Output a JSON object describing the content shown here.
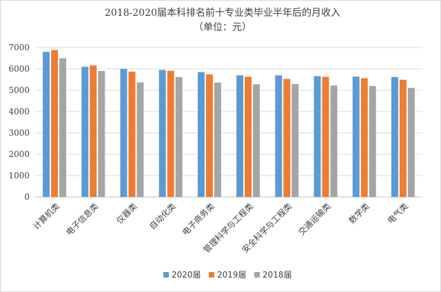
{
  "chart_data": {
    "type": "bar",
    "title": "2018-2020届本科排名前十专业类毕业半年后的月收入",
    "subtitle": "（单位：元）",
    "categories": [
      "计算机类",
      "电子信息类",
      "仪器类",
      "自动化类",
      "电子商务类",
      "管理科学与工程类",
      "安全科学与工程类",
      "交通运输类",
      "数学类",
      "电气类"
    ],
    "series": [
      {
        "name": "2020届",
        "color": "#5b9bd5",
        "values": [
          6800,
          6100,
          6000,
          5950,
          5850,
          5700,
          5700,
          5660,
          5640,
          5620
        ]
      },
      {
        "name": "2019届",
        "color": "#ed7d31",
        "values": [
          6880,
          6160,
          5870,
          5910,
          5740,
          5630,
          5530,
          5630,
          5560,
          5490
        ]
      },
      {
        "name": "2018届",
        "color": "#a5a5a5",
        "values": [
          6500,
          5900,
          5370,
          5620,
          5360,
          5280,
          5290,
          5220,
          5200,
          5110
        ]
      }
    ],
    "yticks": [
      0,
      1000,
      2000,
      3000,
      4000,
      5000,
      6000,
      7000
    ],
    "ylim": [
      0,
      7000
    ],
    "grid": true,
    "legend_position": "bottom"
  }
}
